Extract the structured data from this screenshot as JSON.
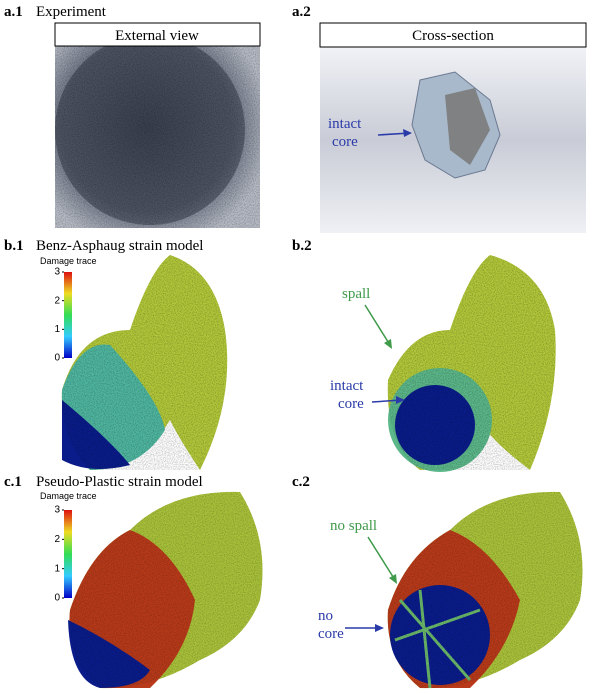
{
  "panels": {
    "a1": {
      "label": "a.1",
      "title": "Experiment",
      "caption": "External view"
    },
    "a2": {
      "label": "a.2",
      "caption": "Cross-section",
      "annotation": [
        "intact",
        "core"
      ]
    },
    "b1": {
      "label": "b.1",
      "title": "Benz-Asphaug strain model",
      "colorbar": {
        "title": "Damage trace",
        "ticks": [
          0,
          1,
          2,
          3
        ]
      }
    },
    "b2": {
      "label": "b.2",
      "annotations": [
        [
          "spall"
        ],
        [
          "intact",
          "core"
        ]
      ]
    },
    "c1": {
      "label": "c.1",
      "title": "Pseudo-Plastic strain model",
      "colorbar": {
        "title": "Damage trace",
        "ticks": [
          0,
          1,
          2,
          3
        ]
      }
    },
    "c2": {
      "label": "c.2",
      "annotations": [
        [
          "no spall"
        ],
        [
          "no",
          "core"
        ]
      ]
    }
  }
}
